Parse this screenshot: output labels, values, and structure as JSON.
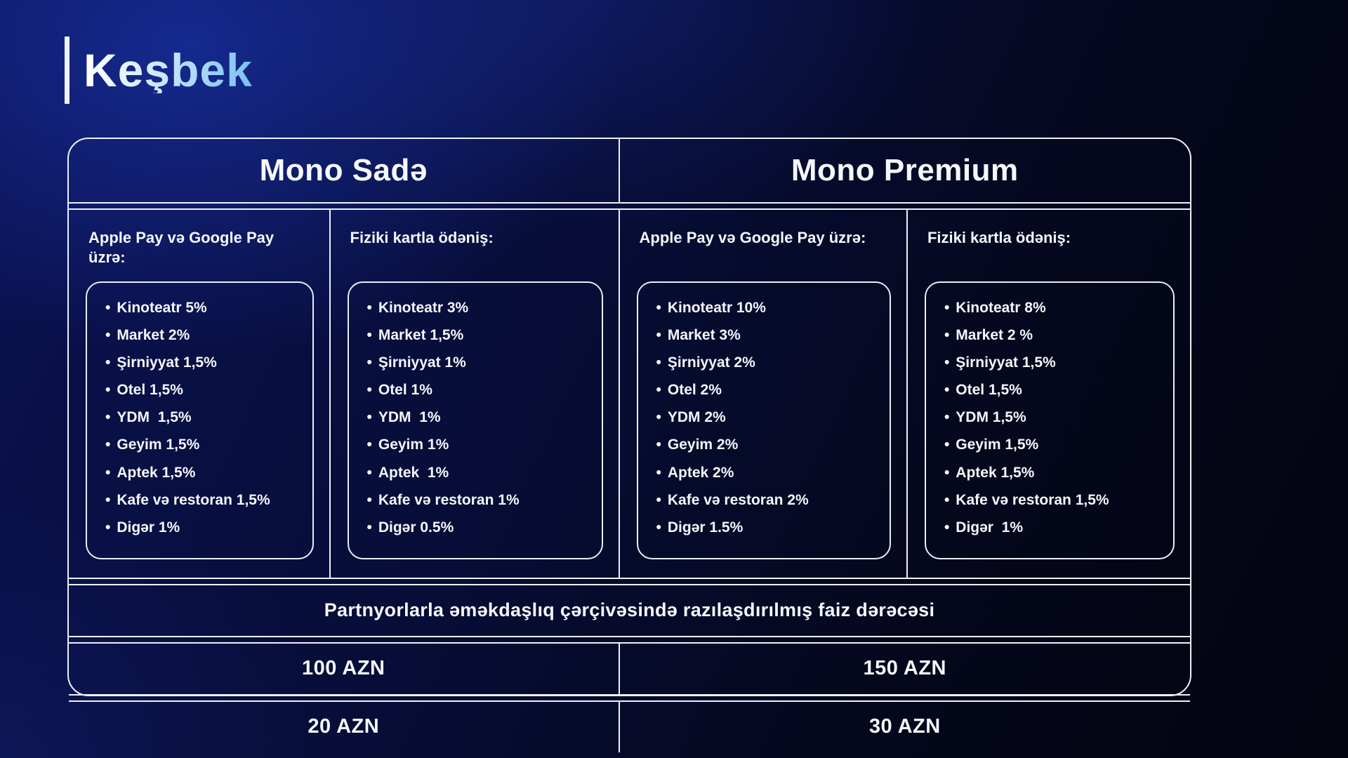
{
  "title": "Keşbek",
  "table": {
    "plans": [
      {
        "name": "Mono Sadə"
      },
      {
        "name": "Mono Premium"
      }
    ],
    "columns": [
      {
        "plan": "Mono Sadə",
        "heading": "Apple Pay və Google Pay üzrə:",
        "items": [
          "Kinoteatr 5%",
          "Market 2%",
          "Şirniyyat 1,5%",
          "Otel 1,5%",
          "YDM  1,5%",
          "Geyim 1,5%",
          "Aptek 1,5%",
          "Kafe və restoran 1,5%",
          "Digər 1%"
        ]
      },
      {
        "plan": "Mono Sadə",
        "heading": "Fiziki kartla ödəniş:",
        "items": [
          "Kinoteatr 3%",
          "Market 1,5%",
          "Şirniyyat 1%",
          "Otel 1%",
          "YDM  1%",
          "Geyim 1%",
          "Aptek  1%",
          "Kafe və restoran 1%",
          "Digər 0.5%"
        ]
      },
      {
        "plan": "Mono Premium",
        "heading": "Apple Pay və Google Pay üzrə:",
        "items": [
          "Kinoteatr 10%",
          "Market 3%",
          "Şirniyyat 2%",
          "Otel 2%",
          "YDM 2%",
          "Geyim 2%",
          "Aptek 2%",
          "Kafe və restoran 2%",
          "Digər 1.5%"
        ]
      },
      {
        "plan": "Mono Premium",
        "heading": "Fiziki kartla ödəniş:",
        "items": [
          "Kinoteatr 8%",
          "Market 2 %",
          "Şirniyyat 1,5%",
          "Otel 1,5%",
          "YDM 1,5%",
          "Geyim 1,5%",
          "Aptek 1,5%",
          "Kafe və restoran 1,5%",
          "Digər  1%"
        ]
      }
    ],
    "partner_note": "Partnyorlarla əməkdaşlıq çərçivəsində razılaşdırılmış faiz dərəcəsi",
    "amount_rows": [
      {
        "left": "100 AZN",
        "right": "150 AZN"
      },
      {
        "left": "20 AZN",
        "right": "30 AZN"
      }
    ]
  },
  "colors": {
    "background_deep": "#03040f",
    "background_blue": "#0a1252",
    "border": "#eef1f7",
    "text": "#f5f7fb",
    "title_gradient_start": "#ffffff",
    "title_gradient_end": "#7fc2f2"
  }
}
